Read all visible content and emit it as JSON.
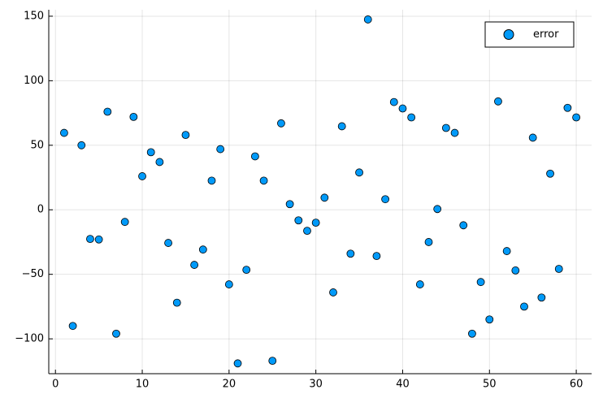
{
  "chart_data": {
    "type": "scatter",
    "x": [
      1,
      2,
      3,
      4,
      5,
      6,
      7,
      8,
      9,
      10,
      11,
      12,
      13,
      14,
      15,
      16,
      17,
      18,
      19,
      20,
      21,
      22,
      23,
      24,
      25,
      26,
      27,
      28,
      29,
      30,
      31,
      32,
      33,
      34,
      35,
      36,
      37,
      38,
      39,
      40,
      41,
      42,
      43,
      44,
      45,
      46,
      47,
      48,
      49,
      50,
      51,
      52,
      53,
      54,
      55,
      56,
      57,
      58,
      59,
      60
    ],
    "series": [
      {
        "name": "error",
        "color": "#009af9",
        "values": [
          59.6,
          -90,
          50,
          -22.6,
          -23,
          76,
          -96,
          -9.4,
          72,
          26,
          44.6,
          37,
          -25.7,
          -72,
          58,
          -42.7,
          -30.8,
          22.6,
          47,
          -57.8,
          -119,
          -46.5,
          41.4,
          22.6,
          -117,
          67,
          4.4,
          -8.2,
          -16.3,
          -10,
          9.4,
          -64,
          64.7,
          -34,
          28.9,
          147.5,
          -35.8,
          8.2,
          83.5,
          78.5,
          71.6,
          -57.8,
          -25,
          0.6,
          63.4,
          59.6,
          -12,
          -96,
          -56,
          -85,
          84,
          -32,
          -47,
          -75,
          55.9,
          -68,
          28,
          -45.8,
          79,
          71.6
        ]
      }
    ],
    "xlim": [
      -0.77,
      61.77
    ],
    "xticks": [
      0,
      10,
      20,
      30,
      40,
      50,
      60
    ],
    "ylim": [
      -127,
      155
    ],
    "yticks": [
      {
        "value": -100,
        "label": "−100"
      },
      {
        "value": -50,
        "label": "−50"
      },
      0,
      50,
      100,
      150
    ],
    "grid": true,
    "legend": "top-right"
  }
}
